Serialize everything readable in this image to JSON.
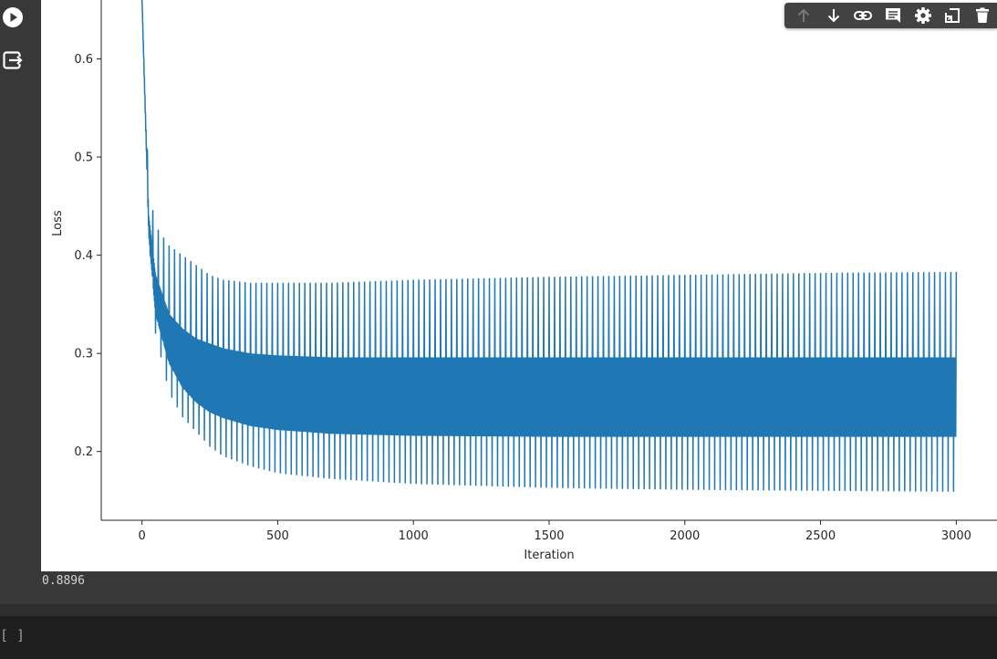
{
  "gutter": {
    "run_icon": "play-circle-icon",
    "output_icon": "output-exit-icon"
  },
  "toolbar": {
    "icons": [
      "arrow-up-icon",
      "arrow-down-icon",
      "link-icon",
      "comment-icon",
      "gear-icon",
      "mirror-cell-icon",
      "delete-icon"
    ]
  },
  "output": {
    "accuracy_text": "0.8896"
  },
  "next_cell": {
    "bracket_text": "[ ]"
  },
  "colors": {
    "series": "#1f77b4",
    "background": "#383838",
    "plot_background": "#ffffff"
  },
  "chart_data": {
    "type": "line",
    "title": "",
    "xlabel": "Iteration",
    "ylabel": "Loss",
    "xlim": [
      -150,
      3150
    ],
    "ylim": [
      0.13,
      0.66
    ],
    "xticks": [
      0,
      500,
      1000,
      1500,
      2000,
      2500,
      3000
    ],
    "yticks": [
      0.2,
      0.3,
      0.4,
      0.5,
      0.6
    ],
    "xtick_labels": [
      "0",
      "500",
      "1000",
      "1500",
      "2000",
      "2500",
      "3000"
    ],
    "ytick_labels": [
      "0.2",
      "0.3",
      "0.4",
      "0.5",
      "0.6"
    ],
    "series": [
      {
        "name": "",
        "x_range": [
          0,
          3000
        ],
        "oscillation_period": 20,
        "envelope": {
          "x": [
            0,
            25,
            50,
            100,
            150,
            200,
            250,
            300,
            400,
            500,
            700,
            1000,
            1500,
            2000,
            2500,
            3000
          ],
          "spike_high": [
            0.66,
            0.47,
            0.43,
            0.41,
            0.4,
            0.39,
            0.38,
            0.375,
            0.372,
            0.372,
            0.372,
            0.375,
            0.378,
            0.38,
            0.382,
            0.383
          ],
          "band_high": [
            0.66,
            0.44,
            0.38,
            0.34,
            0.325,
            0.315,
            0.31,
            0.305,
            0.3,
            0.298,
            0.296,
            0.296,
            0.296,
            0.296,
            0.296,
            0.296
          ],
          "band_low": [
            0.66,
            0.42,
            0.34,
            0.29,
            0.265,
            0.25,
            0.24,
            0.234,
            0.226,
            0.222,
            0.218,
            0.216,
            0.215,
            0.215,
            0.215,
            0.215
          ],
          "spike_low": [
            0.66,
            0.42,
            0.32,
            0.26,
            0.235,
            0.22,
            0.205,
            0.195,
            0.185,
            0.178,
            0.172,
            0.167,
            0.163,
            0.161,
            0.16,
            0.159
          ]
        }
      }
    ],
    "grid": false,
    "legend": "none"
  }
}
